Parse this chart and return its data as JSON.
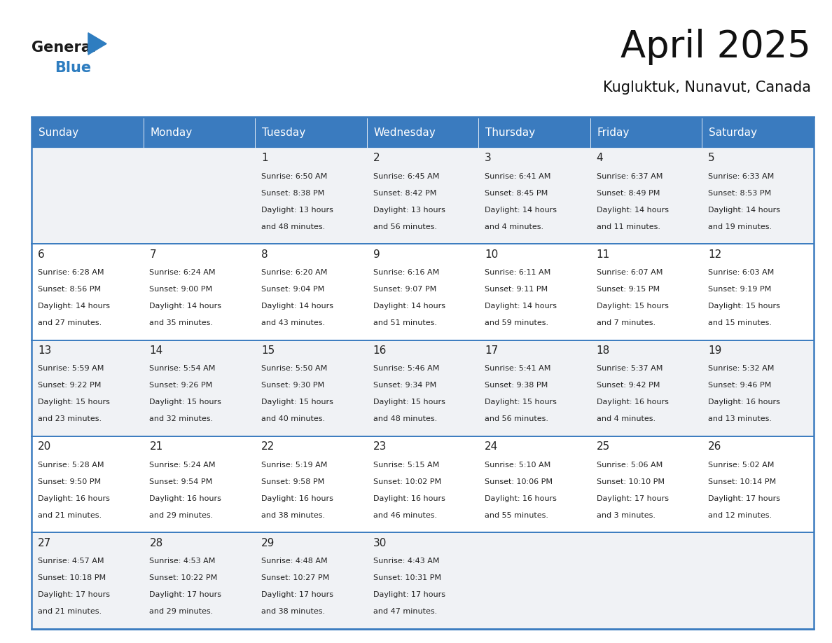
{
  "title": "April 2025",
  "subtitle": "Kugluktuk, Nunavut, Canada",
  "header_color": "#3a7bbf",
  "header_text_color": "#ffffff",
  "row_bg_even": "#f0f2f5",
  "row_bg_odd": "#ffffff",
  "border_color": "#3a7bbf",
  "text_color": "#222222",
  "days_of_week": [
    "Sunday",
    "Monday",
    "Tuesday",
    "Wednesday",
    "Thursday",
    "Friday",
    "Saturday"
  ],
  "calendar_data": [
    [
      {
        "day": "",
        "sunrise": "",
        "sunset": "",
        "daylight": ""
      },
      {
        "day": "",
        "sunrise": "",
        "sunset": "",
        "daylight": ""
      },
      {
        "day": "1",
        "sunrise": "6:50 AM",
        "sunset": "8:38 PM",
        "daylight_h": "13 hours",
        "daylight_m": "48 minutes."
      },
      {
        "day": "2",
        "sunrise": "6:45 AM",
        "sunset": "8:42 PM",
        "daylight_h": "13 hours",
        "daylight_m": "56 minutes."
      },
      {
        "day": "3",
        "sunrise": "6:41 AM",
        "sunset": "8:45 PM",
        "daylight_h": "14 hours",
        "daylight_m": "4 minutes."
      },
      {
        "day": "4",
        "sunrise": "6:37 AM",
        "sunset": "8:49 PM",
        "daylight_h": "14 hours",
        "daylight_m": "11 minutes."
      },
      {
        "day": "5",
        "sunrise": "6:33 AM",
        "sunset": "8:53 PM",
        "daylight_h": "14 hours",
        "daylight_m": "19 minutes."
      }
    ],
    [
      {
        "day": "6",
        "sunrise": "6:28 AM",
        "sunset": "8:56 PM",
        "daylight_h": "14 hours",
        "daylight_m": "27 minutes."
      },
      {
        "day": "7",
        "sunrise": "6:24 AM",
        "sunset": "9:00 PM",
        "daylight_h": "14 hours",
        "daylight_m": "35 minutes."
      },
      {
        "day": "8",
        "sunrise": "6:20 AM",
        "sunset": "9:04 PM",
        "daylight_h": "14 hours",
        "daylight_m": "43 minutes."
      },
      {
        "day": "9",
        "sunrise": "6:16 AM",
        "sunset": "9:07 PM",
        "daylight_h": "14 hours",
        "daylight_m": "51 minutes."
      },
      {
        "day": "10",
        "sunrise": "6:11 AM",
        "sunset": "9:11 PM",
        "daylight_h": "14 hours",
        "daylight_m": "59 minutes."
      },
      {
        "day": "11",
        "sunrise": "6:07 AM",
        "sunset": "9:15 PM",
        "daylight_h": "15 hours",
        "daylight_m": "7 minutes."
      },
      {
        "day": "12",
        "sunrise": "6:03 AM",
        "sunset": "9:19 PM",
        "daylight_h": "15 hours",
        "daylight_m": "15 minutes."
      }
    ],
    [
      {
        "day": "13",
        "sunrise": "5:59 AM",
        "sunset": "9:22 PM",
        "daylight_h": "15 hours",
        "daylight_m": "23 minutes."
      },
      {
        "day": "14",
        "sunrise": "5:54 AM",
        "sunset": "9:26 PM",
        "daylight_h": "15 hours",
        "daylight_m": "32 minutes."
      },
      {
        "day": "15",
        "sunrise": "5:50 AM",
        "sunset": "9:30 PM",
        "daylight_h": "15 hours",
        "daylight_m": "40 minutes."
      },
      {
        "day": "16",
        "sunrise": "5:46 AM",
        "sunset": "9:34 PM",
        "daylight_h": "15 hours",
        "daylight_m": "48 minutes."
      },
      {
        "day": "17",
        "sunrise": "5:41 AM",
        "sunset": "9:38 PM",
        "daylight_h": "15 hours",
        "daylight_m": "56 minutes."
      },
      {
        "day": "18",
        "sunrise": "5:37 AM",
        "sunset": "9:42 PM",
        "daylight_h": "16 hours",
        "daylight_m": "4 minutes."
      },
      {
        "day": "19",
        "sunrise": "5:32 AM",
        "sunset": "9:46 PM",
        "daylight_h": "16 hours",
        "daylight_m": "13 minutes."
      }
    ],
    [
      {
        "day": "20",
        "sunrise": "5:28 AM",
        "sunset": "9:50 PM",
        "daylight_h": "16 hours",
        "daylight_m": "21 minutes."
      },
      {
        "day": "21",
        "sunrise": "5:24 AM",
        "sunset": "9:54 PM",
        "daylight_h": "16 hours",
        "daylight_m": "29 minutes."
      },
      {
        "day": "22",
        "sunrise": "5:19 AM",
        "sunset": "9:58 PM",
        "daylight_h": "16 hours",
        "daylight_m": "38 minutes."
      },
      {
        "day": "23",
        "sunrise": "5:15 AM",
        "sunset": "10:02 PM",
        "daylight_h": "16 hours",
        "daylight_m": "46 minutes."
      },
      {
        "day": "24",
        "sunrise": "5:10 AM",
        "sunset": "10:06 PM",
        "daylight_h": "16 hours",
        "daylight_m": "55 minutes."
      },
      {
        "day": "25",
        "sunrise": "5:06 AM",
        "sunset": "10:10 PM",
        "daylight_h": "17 hours",
        "daylight_m": "3 minutes."
      },
      {
        "day": "26",
        "sunrise": "5:02 AM",
        "sunset": "10:14 PM",
        "daylight_h": "17 hours",
        "daylight_m": "12 minutes."
      }
    ],
    [
      {
        "day": "27",
        "sunrise": "4:57 AM",
        "sunset": "10:18 PM",
        "daylight_h": "17 hours",
        "daylight_m": "21 minutes."
      },
      {
        "day": "28",
        "sunrise": "4:53 AM",
        "sunset": "10:22 PM",
        "daylight_h": "17 hours",
        "daylight_m": "29 minutes."
      },
      {
        "day": "29",
        "sunrise": "4:48 AM",
        "sunset": "10:27 PM",
        "daylight_h": "17 hours",
        "daylight_m": "38 minutes."
      },
      {
        "day": "30",
        "sunrise": "4:43 AM",
        "sunset": "10:31 PM",
        "daylight_h": "17 hours",
        "daylight_m": "47 minutes."
      },
      {
        "day": "",
        "sunrise": "",
        "sunset": "",
        "daylight_h": "",
        "daylight_m": ""
      },
      {
        "day": "",
        "sunrise": "",
        "sunset": "",
        "daylight_h": "",
        "daylight_m": ""
      },
      {
        "day": "",
        "sunrise": "",
        "sunset": "",
        "daylight_h": "",
        "daylight_m": ""
      }
    ]
  ]
}
